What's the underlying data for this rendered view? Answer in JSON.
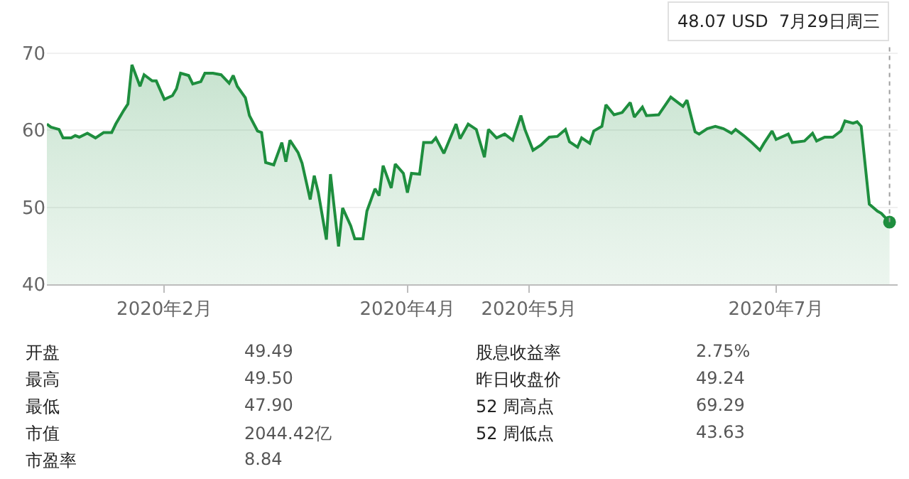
{
  "chart_data": {
    "type": "area",
    "x": [
      "2020-01-03",
      "2020-01-04",
      "2020-01-06",
      "2020-01-07",
      "2020-01-09",
      "2020-01-10",
      "2020-01-11",
      "2020-01-13",
      "2020-01-15",
      "2020-01-17",
      "2020-01-19",
      "2020-01-20",
      "2020-01-22",
      "2020-01-23",
      "2020-01-24",
      "2020-01-26",
      "2020-01-27",
      "2020-01-29",
      "2020-01-30",
      "2020-02-01",
      "2020-02-03",
      "2020-02-04",
      "2020-02-05",
      "2020-02-07",
      "2020-02-08",
      "2020-02-10",
      "2020-02-11",
      "2020-02-13",
      "2020-02-15",
      "2020-02-17",
      "2020-02-18",
      "2020-02-19",
      "2020-02-21",
      "2020-02-22",
      "2020-02-24",
      "2020-02-25",
      "2020-02-26",
      "2020-02-28",
      "2020-03-01",
      "2020-03-02",
      "2020-03-03",
      "2020-03-05",
      "2020-03-06",
      "2020-03-08",
      "2020-03-09",
      "2020-03-10",
      "2020-03-12",
      "2020-03-13",
      "2020-03-15",
      "2020-03-16",
      "2020-03-18",
      "2020-03-19",
      "2020-03-21",
      "2020-03-22",
      "2020-03-24",
      "2020-03-25",
      "2020-03-26",
      "2020-03-28",
      "2020-03-29",
      "2020-03-31",
      "2020-04-01",
      "2020-04-02",
      "2020-04-04",
      "2020-04-05",
      "2020-04-07",
      "2020-04-08",
      "2020-04-10",
      "2020-04-13",
      "2020-04-14",
      "2020-04-16",
      "2020-04-18",
      "2020-04-20",
      "2020-04-21",
      "2020-04-23",
      "2020-04-25",
      "2020-04-27",
      "2020-04-29",
      "2020-04-30",
      "2020-05-02",
      "2020-05-04",
      "2020-05-06",
      "2020-05-08",
      "2020-05-10",
      "2020-05-11",
      "2020-05-13",
      "2020-05-14",
      "2020-05-16",
      "2020-05-17",
      "2020-05-19",
      "2020-05-20",
      "2020-05-22",
      "2020-05-24",
      "2020-05-26",
      "2020-05-27",
      "2020-05-29",
      "2020-05-30",
      "2020-06-02",
      "2020-06-05",
      "2020-06-08",
      "2020-06-09",
      "2020-06-11",
      "2020-06-12",
      "2020-06-14",
      "2020-06-16",
      "2020-06-18",
      "2020-06-20",
      "2020-06-21",
      "2020-06-23",
      "2020-06-25",
      "2020-06-27",
      "2020-06-28",
      "2020-06-30",
      "2020-07-01",
      "2020-07-04",
      "2020-07-05",
      "2020-07-08",
      "2020-07-10",
      "2020-07-11",
      "2020-07-13",
      "2020-07-15",
      "2020-07-17",
      "2020-07-18",
      "2020-07-20",
      "2020-07-21",
      "2020-07-22",
      "2020-07-24",
      "2020-07-26",
      "2020-07-27",
      "2020-07-29"
    ],
    "series": [
      {
        "color": "#1e8e3e",
        "values": [
          60.8,
          60.4,
          60.1,
          59.0,
          59.0,
          59.3,
          59.1,
          59.6,
          59.0,
          59.7,
          59.7,
          60.8,
          62.6,
          63.4,
          68.5,
          65.7,
          67.2,
          66.4,
          66.4,
          64.0,
          64.5,
          65.4,
          67.4,
          67.1,
          66.0,
          66.3,
          67.4,
          67.4,
          67.2,
          66.1,
          67.1,
          65.7,
          64.2,
          61.9,
          59.9,
          59.7,
          55.8,
          55.5,
          58.4,
          55.9,
          58.7,
          57.1,
          55.7,
          51.0,
          54.1,
          51.9,
          45.8,
          54.3,
          44.9,
          49.9,
          47.6,
          45.9,
          45.9,
          49.5,
          52.4,
          51.5,
          55.4,
          52.5,
          55.6,
          54.4,
          51.9,
          54.4,
          54.3,
          58.4,
          58.4,
          59.0,
          57.0,
          60.8,
          58.9,
          60.8,
          60.1,
          56.5,
          60.1,
          59.0,
          59.5,
          58.7,
          61.9,
          60.1,
          57.4,
          58.1,
          59.1,
          59.2,
          60.1,
          58.5,
          57.8,
          59.0,
          58.3,
          59.9,
          60.5,
          63.3,
          62.0,
          62.3,
          63.6,
          61.7,
          63.0,
          61.9,
          62.0,
          64.3,
          63.1,
          63.9,
          59.8,
          59.5,
          60.2,
          60.5,
          60.2,
          59.6,
          60.1,
          59.3,
          58.4,
          57.4,
          58.3,
          59.9,
          58.8,
          59.5,
          58.4,
          58.6,
          59.6,
          58.6,
          59.1,
          59.1,
          59.9,
          61.2,
          60.9,
          61.1,
          60.5,
          50.4,
          49.5,
          49.2,
          48.07
        ]
      }
    ],
    "xlim": [
      "2020-01-03",
      "2020-07-31"
    ],
    "xticks": [
      {
        "value": "2020-02-01",
        "label": "2020年2月"
      },
      {
        "value": "2020-04-01",
        "label": "2020年4月"
      },
      {
        "value": "2020-05-01",
        "label": "2020年5月"
      },
      {
        "value": "2020-07-01",
        "label": "2020年7月"
      }
    ],
    "ylim": [
      40,
      71
    ],
    "yticks": [
      40,
      50,
      60,
      70
    ],
    "grid": "y",
    "marker": "none",
    "annotations": [
      {
        "text": "48.07 USD  7月29日周三",
        "x": "2020-07-29",
        "y": 48.07
      },
      "开盘",
      "49.49",
      "最高",
      "49.50",
      "最低",
      "47.90",
      "市值",
      "2044.42亿",
      "市盈率",
      "8.84",
      "股息收益率",
      "2.75%",
      "昨日收盘价",
      "49.24",
      "52 周高点",
      "69.29",
      "52 周低点",
      "43.63"
    ]
  }
}
